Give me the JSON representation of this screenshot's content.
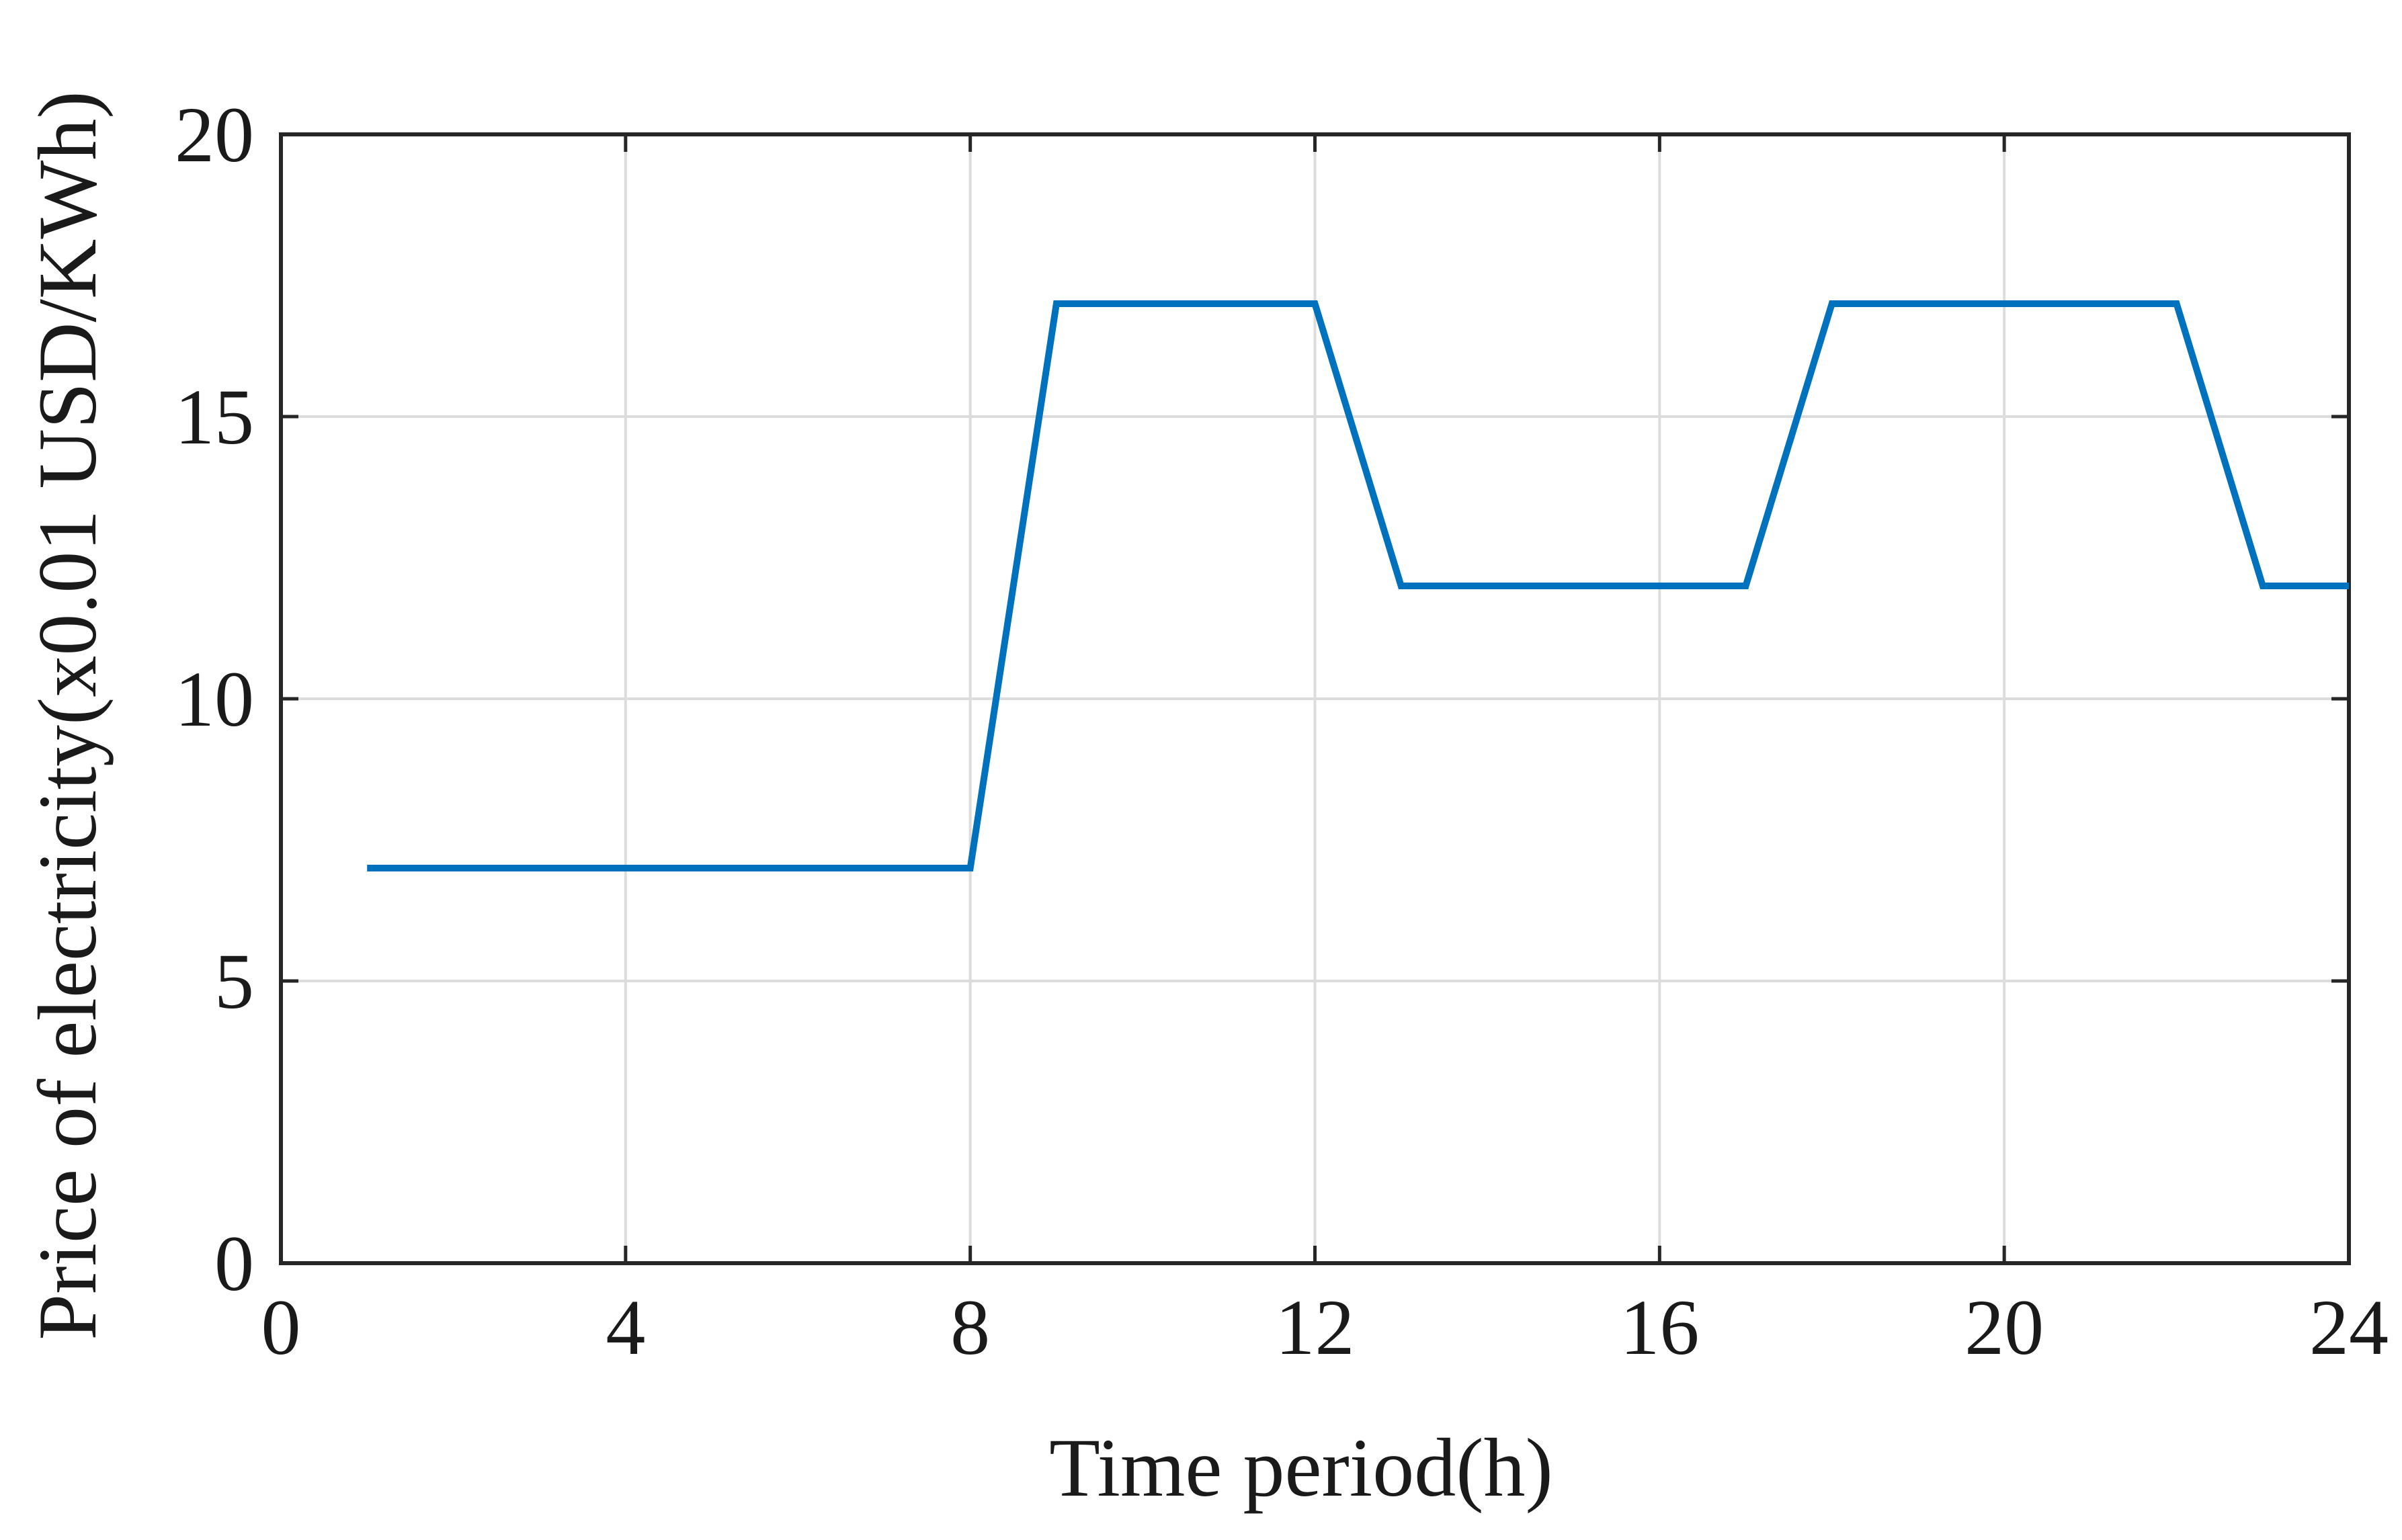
{
  "chart_data": {
    "type": "line",
    "title": "",
    "xlabel": "Time period(h)",
    "ylabel": "Price of electricity(x0.01 USD/KWh)",
    "xlim": [
      0,
      24
    ],
    "ylim": [
      0,
      20
    ],
    "xticks": [
      "0",
      "4",
      "8",
      "12",
      "16",
      "20",
      "24"
    ],
    "yticks": [
      "0",
      "5",
      "10",
      "15",
      "20"
    ],
    "grid": true,
    "legend": "none",
    "series": [
      {
        "color": "#0072BD",
        "x": [
          1,
          2,
          3,
          4,
          5,
          6,
          7,
          8,
          9,
          10,
          11,
          12,
          13,
          14,
          15,
          16,
          17,
          18,
          19,
          20,
          21,
          22,
          23,
          24
        ],
        "y": [
          7,
          7,
          7,
          7,
          7,
          7,
          7,
          7,
          17,
          17,
          17,
          17,
          12,
          12,
          12,
          12,
          12,
          17,
          17,
          17,
          17,
          17,
          12,
          12
        ]
      }
    ]
  }
}
